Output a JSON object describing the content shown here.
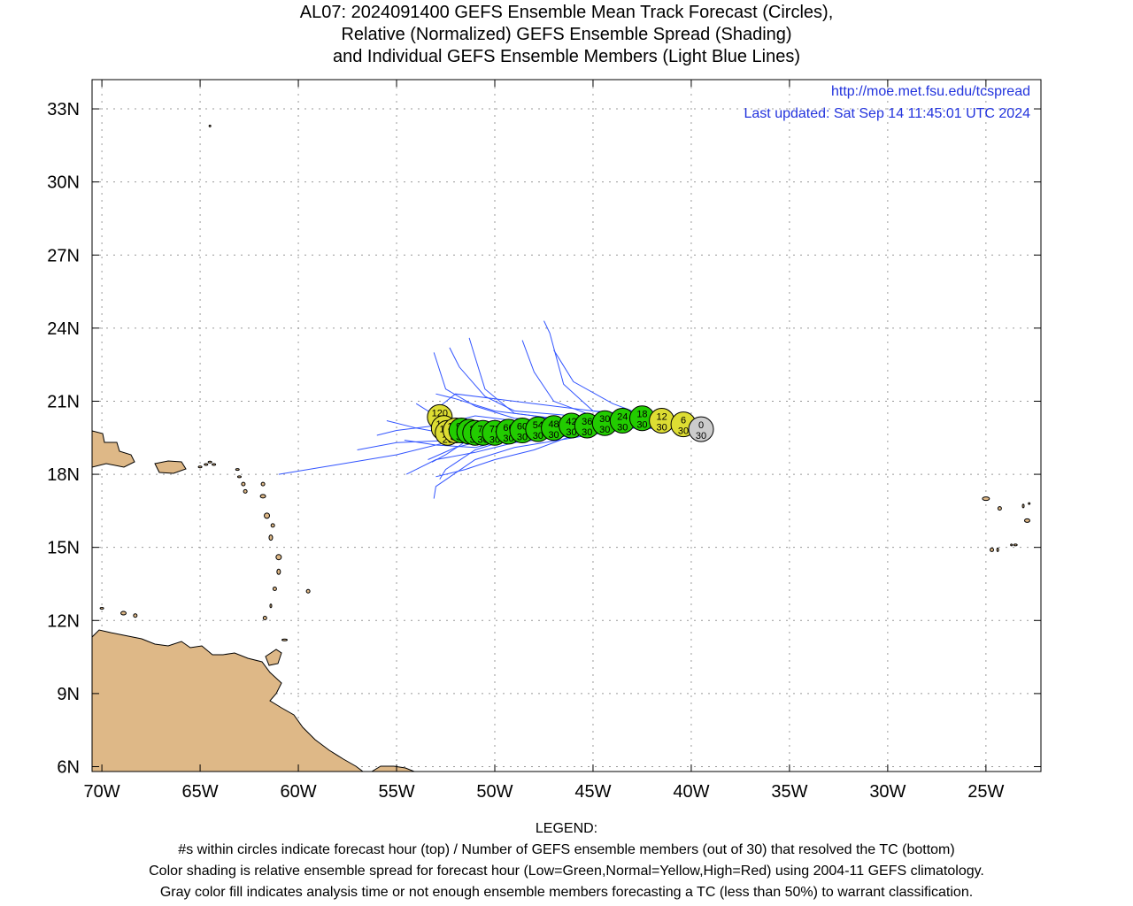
{
  "title": {
    "line1": "AL07: 2024091400 GEFS Ensemble Mean Track Forecast (Circles),",
    "line2": "Relative (Normalized) GEFS Ensemble Spread (Shading)",
    "line3": "and Individual GEFS Ensemble Members (Light Blue Lines)"
  },
  "info": {
    "url": "http://moe.met.fsu.edu/tcspread",
    "updated": "Last updated: Sat Sep 14 11:45:01 UTC 2024"
  },
  "map": {
    "lon_range": [
      -70.5,
      -22.2
    ],
    "lat_range": [
      5.8,
      34.2
    ],
    "lon_ticks": [
      -70,
      -65,
      -60,
      -55,
      -50,
      -45,
      -40,
      -35,
      -30,
      -25
    ],
    "lon_tick_labels": [
      "70W",
      "65W",
      "60W",
      "55W",
      "50W",
      "45W",
      "40W",
      "35W",
      "30W",
      "25W"
    ],
    "lat_ticks": [
      6,
      9,
      12,
      15,
      18,
      21,
      24,
      27,
      30,
      33
    ],
    "lat_tick_labels": [
      "6N",
      "9N",
      "12N",
      "15N",
      "18N",
      "21N",
      "24N",
      "27N",
      "30N",
      "33N"
    ],
    "grid": true,
    "land_color": "#deb887",
    "member_line_color": "#3355ff",
    "info_text_color": "#2233dd",
    "spread_colors": {
      "low": "#22cc00",
      "normal": "#dddd33",
      "high": "#ee2222",
      "gray": "#cccccc"
    }
  },
  "track": [
    {
      "hour": "0",
      "members": "30",
      "lon": -39.5,
      "lat": 19.85,
      "spread": "gray"
    },
    {
      "hour": "6",
      "members": "30",
      "lon": -40.4,
      "lat": 20.05,
      "spread": "normal"
    },
    {
      "hour": "12",
      "members": "30",
      "lon": -41.5,
      "lat": 20.2,
      "spread": "normal"
    },
    {
      "hour": "18",
      "members": "30",
      "lon": -42.5,
      "lat": 20.3,
      "spread": "low"
    },
    {
      "hour": "24",
      "members": "30",
      "lon": -43.5,
      "lat": 20.2,
      "spread": "low"
    },
    {
      "hour": "30",
      "members": "30",
      "lon": -44.4,
      "lat": 20.1,
      "spread": "low"
    },
    {
      "hour": "36",
      "members": "30",
      "lon": -45.3,
      "lat": 20.0,
      "spread": "low"
    },
    {
      "hour": "42",
      "members": "30",
      "lon": -46.1,
      "lat": 20.0,
      "spread": "low"
    },
    {
      "hour": "48",
      "members": "30",
      "lon": -47.0,
      "lat": 19.9,
      "spread": "low"
    },
    {
      "hour": "54",
      "members": "30",
      "lon": -47.8,
      "lat": 19.85,
      "spread": "low"
    },
    {
      "hour": "60",
      "members": "30",
      "lon": -48.6,
      "lat": 19.8,
      "spread": "low"
    },
    {
      "hour": "66",
      "members": "30",
      "lon": -49.3,
      "lat": 19.75,
      "spread": "low"
    },
    {
      "hour": "72",
      "members": "30",
      "lon": -50.0,
      "lat": 19.7,
      "spread": "low"
    },
    {
      "hour": "78",
      "members": "30",
      "lon": -50.6,
      "lat": 19.7,
      "spread": "low"
    },
    {
      "hour": "84",
      "members": "30",
      "lon": -51.0,
      "lat": 19.7,
      "spread": "low"
    },
    {
      "hour": "90",
      "members": "30",
      "lon": -51.3,
      "lat": 19.75,
      "spread": "low"
    },
    {
      "hour": "96",
      "members": "30",
      "lon": -51.7,
      "lat": 19.8,
      "spread": "low"
    },
    {
      "hour": "102",
      "members": "30",
      "lon": -52.0,
      "lat": 19.8,
      "spread": "normal"
    },
    {
      "hour": "108",
      "members": "29",
      "lon": -52.4,
      "lat": 19.7,
      "spread": "normal"
    },
    {
      "hour": "114",
      "members": "29",
      "lon": -52.6,
      "lat": 19.9,
      "spread": "normal"
    },
    {
      "hour": "120",
      "members": "29",
      "lon": -52.8,
      "lat": 20.35,
      "spread": "normal"
    }
  ],
  "members": [
    [
      [
        -39.5,
        19.85
      ],
      [
        -42,
        20.4
      ],
      [
        -45,
        20.6
      ],
      [
        -48,
        20.9
      ],
      [
        -50,
        21.1
      ],
      [
        -52,
        21.3
      ],
      [
        -53.1,
        20.6
      ]
    ],
    [
      [
        -39.5,
        19.85
      ],
      [
        -43,
        20.1
      ],
      [
        -46,
        20.1
      ],
      [
        -49,
        20.3
      ],
      [
        -51,
        20.8
      ],
      [
        -52.5,
        21.5
      ],
      [
        -53.1,
        23.0
      ]
    ],
    [
      [
        -39.5,
        19.85
      ],
      [
        -43,
        20.0
      ],
      [
        -46,
        19.7
      ],
      [
        -49,
        19.6
      ],
      [
        -52,
        19.4
      ],
      [
        -55,
        19.3
      ],
      [
        -57,
        19.0
      ]
    ],
    [
      [
        -39.5,
        19.85
      ],
      [
        -43,
        20.0
      ],
      [
        -46,
        19.8
      ],
      [
        -49,
        19.7
      ],
      [
        -52,
        19.4
      ],
      [
        -55,
        18.8
      ],
      [
        -58,
        18.4
      ],
      [
        -61,
        18.0
      ]
    ],
    [
      [
        -39.5,
        19.85
      ],
      [
        -42,
        20.3
      ],
      [
        -44,
        20.9
      ],
      [
        -46,
        21.8
      ],
      [
        -47,
        23.1
      ]
    ],
    [
      [
        -39.5,
        19.85
      ],
      [
        -42,
        20.3
      ],
      [
        -45,
        20.6
      ],
      [
        -46.5,
        21.7
      ],
      [
        -47.2,
        23.8
      ],
      [
        -47.5,
        24.3
      ]
    ],
    [
      [
        -39.5,
        19.85
      ],
      [
        -42,
        20.2
      ],
      [
        -45,
        20.4
      ],
      [
        -47,
        21.0
      ],
      [
        -48,
        22.2
      ],
      [
        -48.6,
        23.5
      ]
    ],
    [
      [
        -39.5,
        19.85
      ],
      [
        -43,
        20.0
      ],
      [
        -46,
        19.6
      ],
      [
        -48,
        19.0
      ],
      [
        -50,
        18.6
      ],
      [
        -51.5,
        18.2
      ],
      [
        -53,
        17.9
      ]
    ],
    [
      [
        -39.5,
        19.85
      ],
      [
        -43,
        19.9
      ],
      [
        -46,
        19.5
      ],
      [
        -49,
        19.1
      ],
      [
        -51,
        18.6
      ],
      [
        -53,
        17.5
      ],
      [
        -53.1,
        17.0
      ]
    ],
    [
      [
        -39.5,
        19.85
      ],
      [
        -43,
        20.0
      ],
      [
        -46,
        19.9
      ],
      [
        -49,
        20.2
      ],
      [
        -51,
        20.4
      ],
      [
        -53,
        20.0
      ],
      [
        -55,
        19.8
      ],
      [
        -56,
        19.6
      ]
    ],
    [
      [
        -39.5,
        19.85
      ],
      [
        -43,
        20.1
      ],
      [
        -46,
        20.0
      ],
      [
        -49,
        20.0
      ],
      [
        -51,
        19.6
      ],
      [
        -52.5,
        18.8
      ],
      [
        -53.2,
        18.5
      ]
    ],
    [
      [
        -39.5,
        19.85
      ],
      [
        -43,
        20.1
      ],
      [
        -46,
        20.2
      ],
      [
        -49,
        20.5
      ],
      [
        -50.5,
        21.5
      ],
      [
        -51,
        22.8
      ],
      [
        -51.3,
        23.6
      ]
    ],
    [
      [
        -39.5,
        19.85
      ],
      [
        -43,
        20.0
      ],
      [
        -46,
        19.9
      ],
      [
        -49,
        19.7
      ],
      [
        -52,
        19.6
      ],
      [
        -54,
        19.9
      ],
      [
        -55.5,
        20.2
      ]
    ],
    [
      [
        -39.5,
        19.85
      ],
      [
        -43,
        20.1
      ],
      [
        -46,
        20.1
      ],
      [
        -48,
        20.4
      ],
      [
        -50,
        20.6
      ],
      [
        -52,
        21.1
      ],
      [
        -53,
        21.3
      ]
    ],
    [
      [
        -39.5,
        19.85
      ],
      [
        -43,
        19.9
      ],
      [
        -46,
        19.6
      ],
      [
        -49,
        19.3
      ],
      [
        -51,
        18.9
      ],
      [
        -53,
        18.6
      ],
      [
        -54.5,
        18.0
      ]
    ],
    [
      [
        -39.5,
        19.85
      ],
      [
        -43,
        20.0
      ],
      [
        -46,
        19.8
      ],
      [
        -49,
        19.5
      ],
      [
        -51,
        19.1
      ],
      [
        -53,
        19.2
      ],
      [
        -54.6,
        19.4
      ]
    ],
    [
      [
        -39.5,
        19.85
      ],
      [
        -43,
        20.0
      ],
      [
        -46,
        20.0
      ],
      [
        -49,
        20.0
      ],
      [
        -51,
        20.0
      ],
      [
        -53,
        20.4
      ],
      [
        -54,
        20.9
      ]
    ],
    [
      [
        -39.5,
        19.85
      ],
      [
        -43,
        19.9
      ],
      [
        -46,
        19.7
      ],
      [
        -49,
        19.6
      ],
      [
        -50.5,
        19.4
      ],
      [
        -52,
        19.1
      ],
      [
        -53.4,
        18.6
      ]
    ],
    [
      [
        -39.5,
        19.85
      ],
      [
        -43,
        20.0
      ],
      [
        -46,
        19.8
      ],
      [
        -49,
        19.5
      ],
      [
        -51,
        19.0
      ],
      [
        -52.5,
        18.2
      ],
      [
        -52.8,
        17.8
      ]
    ],
    [
      [
        -39.5,
        19.85
      ],
      [
        -43,
        20.1
      ],
      [
        -46,
        20.4
      ],
      [
        -49,
        20.6
      ],
      [
        -50.5,
        21.2
      ],
      [
        -51.8,
        22.4
      ],
      [
        -52.3,
        23.2
      ]
    ]
  ],
  "legend": {
    "heading": "LEGEND:",
    "line1": "#s within circles indicate forecast hour (top) / Number of GEFS ensemble members (out of 30) that resolved the TC (bottom)",
    "line2": "Color shading is relative ensemble spread for forecast hour (Low=Green,Normal=Yellow,High=Red) using 2004-11 GEFS climatology.",
    "line3": "Gray color fill indicates analysis time or not enough ensemble members forecasting a TC (less than 50%) to warrant classification."
  }
}
